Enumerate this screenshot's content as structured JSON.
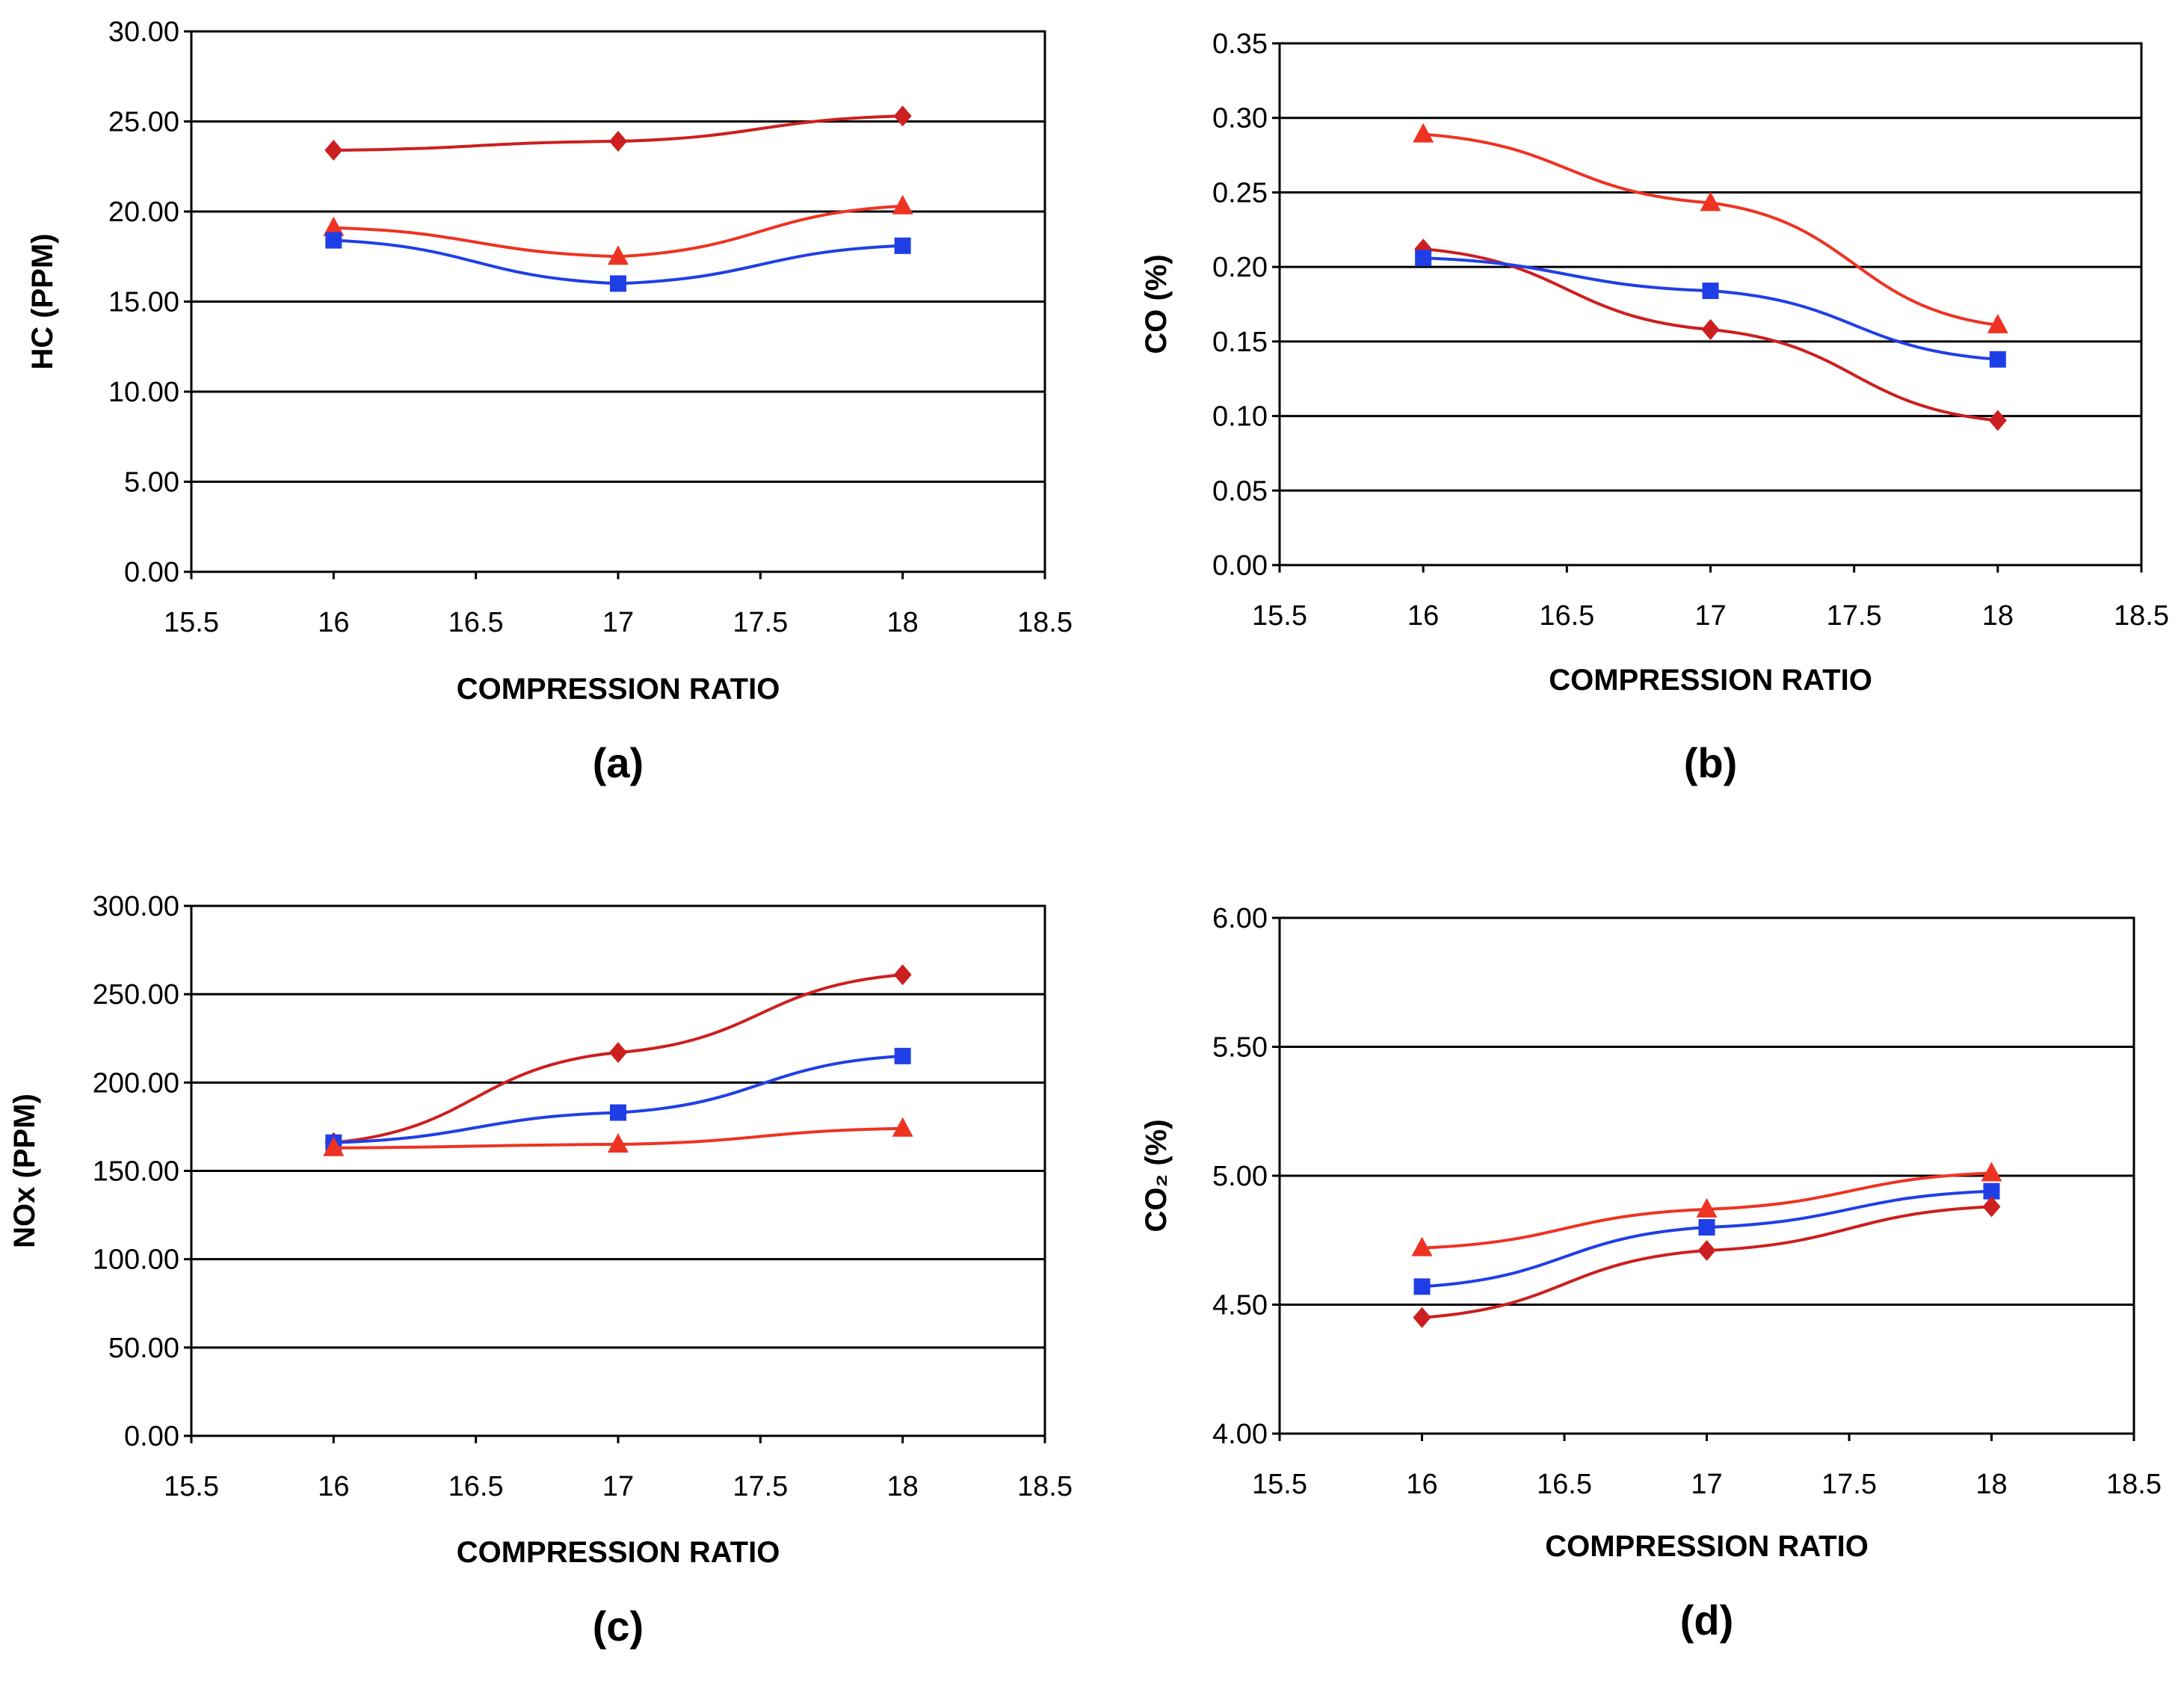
{
  "figure": {
    "background": "#ffffff"
  },
  "colors": {
    "diamond_series": "#cc1f1f",
    "square_series": "#1f3fe6",
    "triangle_series": "#ee3322",
    "grid": "#000000"
  },
  "chart_data": [
    {
      "type": "line",
      "panel": "(a)",
      "xlabel": "COMPRESSION RATIO",
      "ylabel": "HC (PPM)",
      "xlim": [
        15.5,
        18.5
      ],
      "ylim": [
        0,
        30
      ],
      "xticks": [
        15.5,
        16,
        16.5,
        17,
        17.5,
        18,
        18.5
      ],
      "xtick_labels": [
        "15.5",
        "16",
        "16.5",
        "17",
        "17.5",
        "18",
        "18.5"
      ],
      "yticks": [
        0,
        5,
        10,
        15,
        20,
        25,
        30
      ],
      "ytick_labels": [
        "0.00",
        "5.00",
        "10.00",
        "15.00",
        "20.00",
        "25.00",
        "30.00"
      ],
      "grid": true,
      "series": [
        {
          "marker": "diamond",
          "color": "#cc1f1f",
          "x": [
            16,
            17,
            18
          ],
          "values": [
            23.4,
            23.9,
            25.3
          ]
        },
        {
          "marker": "triangle",
          "color": "#ee3322",
          "x": [
            16,
            17,
            18
          ],
          "values": [
            19.1,
            17.5,
            20.3
          ]
        },
        {
          "marker": "square",
          "color": "#1f3fe6",
          "x": [
            16,
            17,
            18
          ],
          "values": [
            18.4,
            16.0,
            18.1
          ]
        }
      ]
    },
    {
      "type": "line",
      "panel": "(b)",
      "xlabel": "COMPRESSION RATIO",
      "ylabel": "CO (%)",
      "xlim": [
        15.5,
        18.5
      ],
      "ylim": [
        0,
        0.35
      ],
      "xticks": [
        15.5,
        16,
        16.5,
        17,
        17.5,
        18,
        18.5
      ],
      "xtick_labels": [
        "15.5",
        "16",
        "16.5",
        "17",
        "17.5",
        "18",
        "18.5"
      ],
      "yticks": [
        0,
        0.05,
        0.1,
        0.15,
        0.2,
        0.25,
        0.3,
        0.35
      ],
      "ytick_labels": [
        "0.00",
        "0.05",
        "0.10",
        "0.15",
        "0.20",
        "0.25",
        "0.30",
        "0.35"
      ],
      "grid": true,
      "series": [
        {
          "marker": "diamond",
          "color": "#cc1f1f",
          "x": [
            16,
            17,
            18
          ],
          "values": [
            0.212,
            0.158,
            0.097
          ]
        },
        {
          "marker": "triangle",
          "color": "#ee3322",
          "x": [
            16,
            17,
            18
          ],
          "values": [
            0.289,
            0.243,
            0.161
          ]
        },
        {
          "marker": "square",
          "color": "#1f3fe6",
          "x": [
            16,
            17,
            18
          ],
          "values": [
            0.206,
            0.184,
            0.138
          ]
        }
      ]
    },
    {
      "type": "line",
      "panel": "(c)",
      "xlabel": "COMPRESSION RATIO",
      "ylabel": "NOx (PPM)",
      "xlim": [
        15.5,
        18.5
      ],
      "ylim": [
        0,
        300
      ],
      "xticks": [
        15.5,
        16,
        16.5,
        17,
        17.5,
        18,
        18.5
      ],
      "xtick_labels": [
        "15.5",
        "16",
        "16.5",
        "17",
        "17.5",
        "18",
        "18.5"
      ],
      "yticks": [
        0,
        50,
        100,
        150,
        200,
        250,
        300
      ],
      "ytick_labels": [
        "0.00",
        "50.00",
        "100.00",
        "150.00",
        "200.00",
        "250.00",
        "300.00"
      ],
      "grid": true,
      "series": [
        {
          "marker": "diamond",
          "color": "#cc1f1f",
          "x": [
            16,
            17,
            18
          ],
          "values": [
            166,
            217,
            261
          ]
        },
        {
          "marker": "square",
          "color": "#1f3fe6",
          "x": [
            16,
            17,
            18
          ],
          "values": [
            166,
            183,
            215
          ]
        },
        {
          "marker": "triangle",
          "color": "#ee3322",
          "x": [
            16,
            17,
            18
          ],
          "values": [
            163,
            165,
            174
          ]
        }
      ]
    },
    {
      "type": "line",
      "panel": "(d)",
      "xlabel": "COMPRESSION RATIO",
      "ylabel": "CO₂ (%)",
      "xlim": [
        15.5,
        18.5
      ],
      "ylim": [
        4,
        6
      ],
      "xticks": [
        15.5,
        16,
        16.5,
        17,
        17.5,
        18,
        18.5
      ],
      "xtick_labels": [
        "15.5",
        "16",
        "16.5",
        "17",
        "17.5",
        "18",
        "18.5"
      ],
      "yticks": [
        4,
        4.5,
        5,
        5.5,
        6
      ],
      "ytick_labels": [
        "4.00",
        "4.50",
        "5.00",
        "5.50",
        "6.00"
      ],
      "grid": true,
      "series": [
        {
          "marker": "triangle",
          "color": "#ee3322",
          "x": [
            16,
            17,
            18
          ],
          "values": [
            4.72,
            4.87,
            5.01
          ]
        },
        {
          "marker": "square",
          "color": "#1f3fe6",
          "x": [
            16,
            17,
            18
          ],
          "values": [
            4.57,
            4.8,
            4.94
          ]
        },
        {
          "marker": "diamond",
          "color": "#cc1f1f",
          "x": [
            16,
            17,
            18
          ],
          "values": [
            4.45,
            4.71,
            4.88
          ]
        }
      ]
    }
  ]
}
